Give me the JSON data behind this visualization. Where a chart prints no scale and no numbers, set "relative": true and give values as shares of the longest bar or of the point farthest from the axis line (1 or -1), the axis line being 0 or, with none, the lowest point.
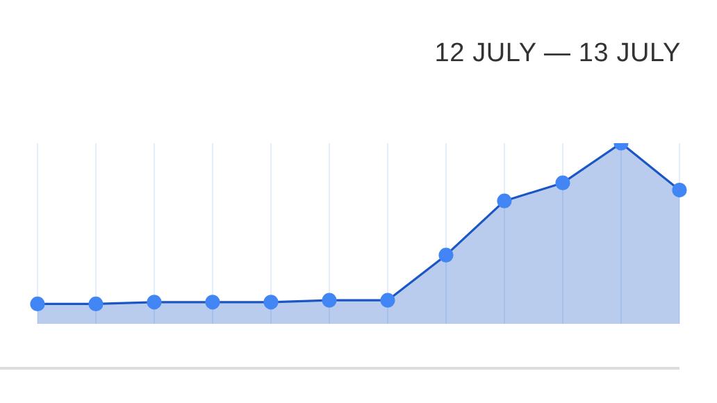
{
  "chart_data": {
    "type": "area",
    "title": "12 JULY — 13 JULY",
    "relative": true,
    "categories": [
      null,
      null,
      null,
      null,
      null,
      null,
      null,
      null,
      null,
      null,
      null,
      null
    ],
    "series": [
      {
        "color": "#1a56c4",
        "values": [
          0.11,
          0.11,
          0.12,
          0.12,
          0.12,
          0.13,
          0.13,
          0.38,
          0.68,
          0.78,
          1,
          0.74
        ]
      }
    ],
    "grid": "x",
    "marker": "circle",
    "legend": false
  }
}
